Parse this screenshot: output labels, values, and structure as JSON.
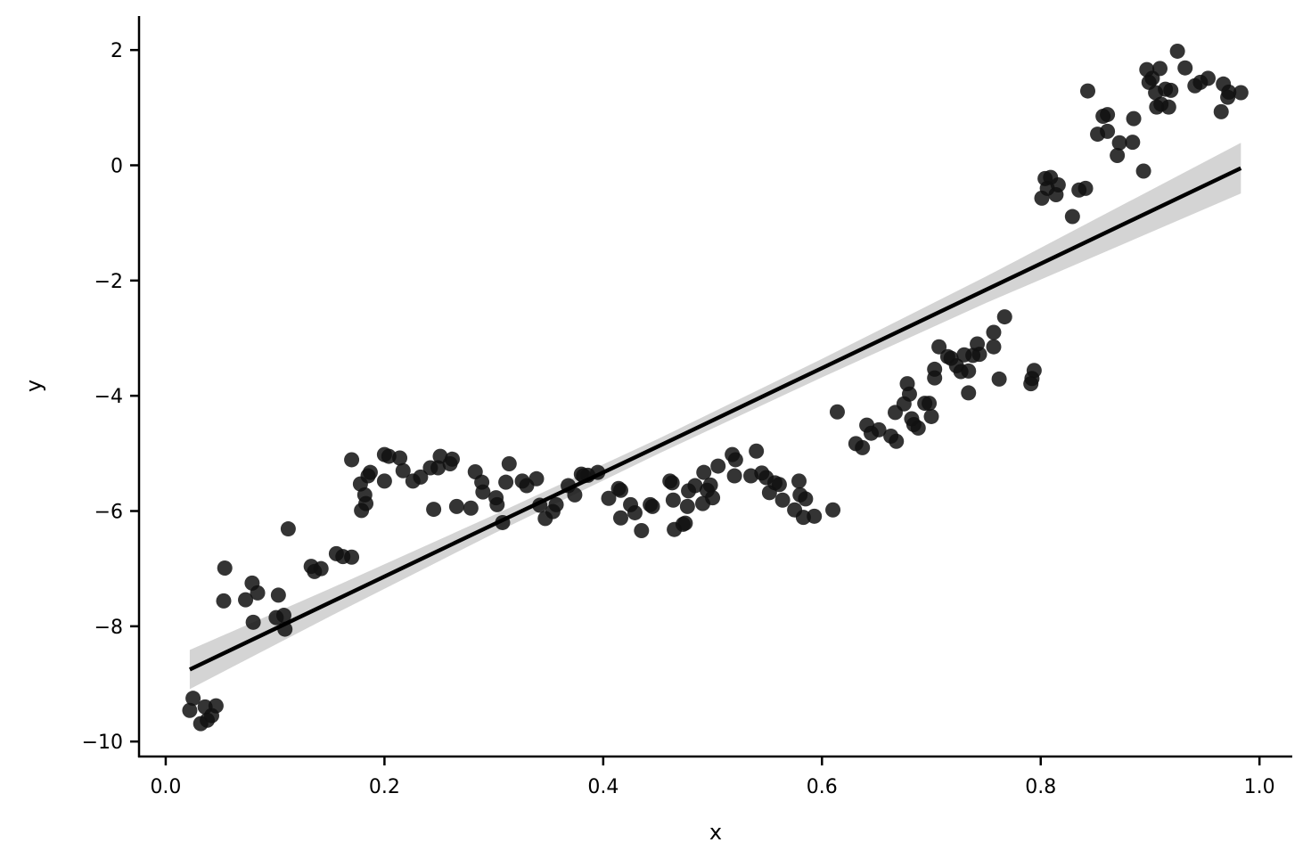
{
  "chart_data": {
    "type": "scatter",
    "xlabel": "x",
    "ylabel": "y",
    "xlim": [
      -0.0244,
      1.03
    ],
    "ylim": [
      -10.26,
      2.59
    ],
    "xticks": [
      {
        "value": 0,
        "label": "0.0"
      },
      0.2,
      0.4,
      0.6,
      0.8,
      {
        "value": 1,
        "label": "1.0"
      }
    ],
    "yticks": [
      {
        "value": -10,
        "label": "−10"
      },
      {
        "value": -8,
        "label": "−8"
      },
      {
        "value": -6,
        "label": "−6"
      },
      {
        "value": -4,
        "label": "−4"
      },
      {
        "value": -2,
        "label": "−2"
      },
      0,
      2
    ],
    "series": [
      {
        "color": "#111111",
        "x": [
          0.022,
          0.025,
          0.032,
          0.036,
          0.038,
          0.042,
          0.046,
          0.054,
          0.053,
          0.073,
          0.079,
          0.08,
          0.084,
          0.103,
          0.101,
          0.108,
          0.109,
          0.112,
          0.133,
          0.136,
          0.142,
          0.156,
          0.162,
          0.17,
          0.17,
          0.178,
          0.179,
          0.182,
          0.183,
          0.185,
          0.187,
          0.2,
          0.2,
          0.204,
          0.214,
          0.217,
          0.226,
          0.233,
          0.242,
          0.245,
          0.249,
          0.251,
          0.26,
          0.262,
          0.266,
          0.279,
          0.283,
          0.289,
          0.29,
          0.302,
          0.303,
          0.308,
          0.311,
          0.314,
          0.326,
          0.33,
          0.339,
          0.342,
          0.347,
          0.354,
          0.357,
          0.368,
          0.374,
          0.38,
          0.382,
          0.386,
          0.395,
          0.405,
          0.414,
          0.416,
          0.416,
          0.425,
          0.429,
          0.435,
          0.443,
          0.445,
          0.461,
          0.463,
          0.464,
          0.465,
          0.473,
          0.475,
          0.477,
          0.478,
          0.484,
          0.491,
          0.492,
          0.495,
          0.498,
          0.5,
          0.505,
          0.518,
          0.521,
          0.52,
          0.535,
          0.54,
          0.545,
          0.549,
          0.552,
          0.557,
          0.561,
          0.564,
          0.575,
          0.579,
          0.58,
          0.583,
          0.585,
          0.593,
          0.61,
          0.614,
          0.631,
          0.637,
          0.641,
          0.645,
          0.652,
          0.663,
          0.667,
          0.668,
          0.675,
          0.678,
          0.68,
          0.682,
          0.684,
          0.688,
          0.694,
          0.698,
          0.7,
          0.703,
          0.703,
          0.707,
          0.715,
          0.718,
          0.723,
          0.727,
          0.73,
          0.734,
          0.734,
          0.738,
          0.742,
          0.744,
          0.757,
          0.757,
          0.762,
          0.767,
          0.791,
          0.794,
          0.792,
          0.801,
          0.804,
          0.806,
          0.809,
          0.814,
          0.816,
          0.829,
          0.835,
          0.841,
          0.843,
          0.852,
          0.857,
          0.861,
          0.861,
          0.87,
          0.872,
          0.884,
          0.885,
          0.894,
          0.897,
          0.899,
          0.902,
          0.905,
          0.906,
          0.909,
          0.91,
          0.914,
          0.917,
          0.919,
          0.925,
          0.932,
          0.941,
          0.946,
          0.953,
          0.965,
          0.967,
          0.971,
          0.972,
          0.983
        ],
        "values": [
          -9.46,
          -9.25,
          -9.69,
          -9.4,
          -9.63,
          -9.55,
          -9.38,
          -6.99,
          -7.56,
          -7.54,
          -7.25,
          -7.93,
          -7.42,
          -7.46,
          -7.85,
          -7.81,
          -8.05,
          -6.31,
          -6.96,
          -7.05,
          -7.0,
          -6.74,
          -6.79,
          -6.8,
          -5.11,
          -5.53,
          -5.99,
          -5.72,
          -5.87,
          -5.39,
          -5.33,
          -5.48,
          -5.02,
          -5.05,
          -5.08,
          -5.3,
          -5.48,
          -5.41,
          -5.25,
          -5.97,
          -5.25,
          -5.05,
          -5.18,
          -5.1,
          -5.92,
          -5.95,
          -5.32,
          -5.5,
          -5.67,
          -5.77,
          -5.89,
          -6.2,
          -5.5,
          -5.18,
          -5.48,
          -5.56,
          -5.44,
          -5.9,
          -6.13,
          -6.01,
          -5.89,
          -5.56,
          -5.72,
          -5.36,
          -5.39,
          -5.38,
          -5.33,
          -5.78,
          -5.61,
          -5.64,
          -6.12,
          -5.89,
          -6.03,
          -6.34,
          -5.89,
          -5.92,
          -5.48,
          -5.51,
          -5.81,
          -6.32,
          -6.23,
          -6.21,
          -5.92,
          -5.65,
          -5.56,
          -5.87,
          -5.33,
          -5.64,
          -5.55,
          -5.77,
          -5.22,
          -5.02,
          -5.11,
          -5.39,
          -5.39,
          -4.96,
          -5.34,
          -5.42,
          -5.68,
          -5.51,
          -5.54,
          -5.81,
          -5.98,
          -5.48,
          -5.72,
          -6.11,
          -5.79,
          -6.09,
          -5.98,
          -4.28,
          -4.83,
          -4.9,
          -4.51,
          -4.65,
          -4.59,
          -4.7,
          -4.29,
          -4.79,
          -4.14,
          -3.79,
          -3.97,
          -4.4,
          -4.5,
          -4.56,
          -4.13,
          -4.13,
          -4.36,
          -3.54,
          -3.69,
          -3.15,
          -3.32,
          -3.35,
          -3.48,
          -3.58,
          -3.29,
          -3.57,
          -3.95,
          -3.3,
          -3.1,
          -3.28,
          -2.9,
          -3.15,
          -3.71,
          -2.63,
          -3.79,
          -3.56,
          -3.7,
          -0.57,
          -0.23,
          -0.4,
          -0.21,
          -0.51,
          -0.34,
          -0.89,
          -0.43,
          -0.4,
          1.29,
          0.54,
          0.85,
          0.88,
          0.59,
          0.17,
          0.39,
          0.4,
          0.81,
          -0.1,
          1.66,
          1.44,
          1.51,
          1.26,
          1.01,
          1.68,
          1.06,
          1.32,
          1.01,
          1.3,
          1.98,
          1.69,
          1.38,
          1.44,
          1.51,
          0.93,
          1.41,
          1.18,
          1.27,
          1.26
        ]
      }
    ],
    "fit": {
      "color": "#000000",
      "band_color": "#d4d4d4",
      "x": [
        0.022,
        0.15,
        0.3,
        0.45,
        0.6,
        0.75,
        0.983
      ],
      "values": [
        -8.75,
        -7.59,
        -6.23,
        -4.88,
        -3.52,
        -2.16,
        -0.05
      ],
      "lower": [
        -9.09,
        -7.83,
        -6.39,
        -5.01,
        -3.68,
        -2.39,
        -0.49
      ],
      "upper": [
        -8.41,
        -7.35,
        -6.07,
        -4.75,
        -3.36,
        -1.93,
        0.39
      ]
    }
  }
}
